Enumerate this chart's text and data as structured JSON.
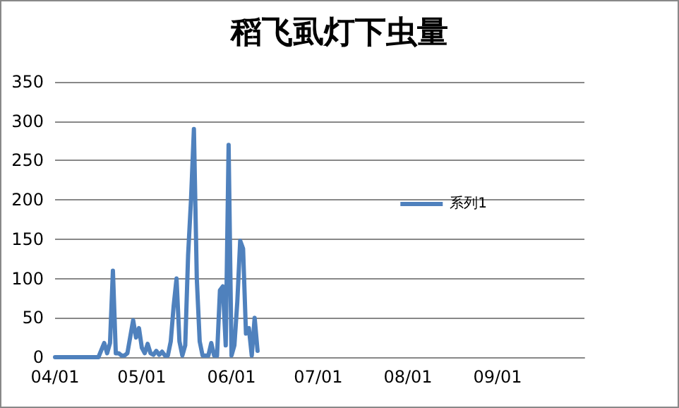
{
  "chart_data": {
    "type": "line",
    "title": "稻飞虱灯下虫量",
    "x": [
      "--04-01",
      "--04-15",
      "--04-16",
      "--04-18",
      "--04-19",
      "--04-20",
      "--04-21",
      "--04-22",
      "--04-23",
      "--04-24",
      "--04-25",
      "--04-26",
      "--04-28",
      "--04-29",
      "--04-30",
      "--05-01",
      "--05-02",
      "--05-03",
      "--05-04",
      "--05-05",
      "--05-06",
      "--05-07",
      "--05-08",
      "--05-09",
      "--05-10",
      "--05-11",
      "--05-12",
      "--05-13",
      "--05-14",
      "--05-15",
      "--05-16",
      "--05-17",
      "--05-18",
      "--05-19",
      "--05-20",
      "--05-21",
      "--05-22",
      "--05-23",
      "--05-24",
      "--05-25",
      "--05-26",
      "--05-27",
      "--05-28",
      "--05-29",
      "--05-30",
      "--05-31",
      "--06-01",
      "--06-02",
      "--06-03",
      "--06-04",
      "--06-05",
      "--06-06",
      "--06-07",
      "--06-08",
      "--06-09",
      "--06-10"
    ],
    "series": [
      {
        "name": "系列1",
        "color": "#4f81bd",
        "values": [
          0,
          0,
          0,
          18,
          5,
          18,
          110,
          5,
          5,
          2,
          2,
          5,
          47,
          25,
          37,
          12,
          5,
          17,
          5,
          3,
          8,
          3,
          7,
          2,
          2,
          20,
          65,
          100,
          20,
          2,
          15,
          130,
          200,
          290,
          100,
          20,
          2,
          2,
          2,
          18,
          2,
          2,
          85,
          90,
          15,
          270,
          2,
          15,
          70,
          148,
          138,
          30,
          37,
          2,
          50,
          8
        ]
      }
    ],
    "xlim": [
      "--04-01",
      "--10-01"
    ],
    "xticks": [
      {
        "value": "--04-01",
        "label": "04/01"
      },
      {
        "value": "--05-01",
        "label": "05/01"
      },
      {
        "value": "--06-01",
        "label": "06/01"
      },
      {
        "value": "--07-01",
        "label": "07/01"
      },
      {
        "value": "--08-01",
        "label": "08/01"
      },
      {
        "value": "--09-01",
        "label": "09/01"
      }
    ],
    "ylim": [
      0,
      350
    ],
    "yticks": [
      0,
      50,
      100,
      150,
      200,
      250,
      300,
      350
    ],
    "grid": "y",
    "legend": "right",
    "marker": "none",
    "line_style": "solid"
  }
}
